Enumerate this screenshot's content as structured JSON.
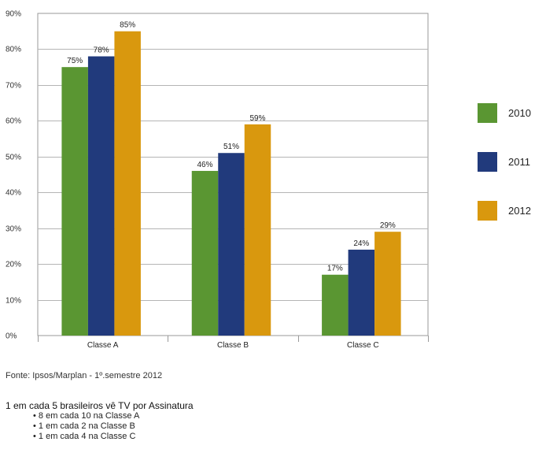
{
  "chart_data": {
    "type": "bar",
    "categories": [
      "Classe A",
      "Classe B",
      "Classe C"
    ],
    "series": [
      {
        "name": "2010",
        "values": [
          75,
          46,
          17
        ],
        "labels": [
          "75%",
          "46%",
          "17%"
        ],
        "color": "#5a9632"
      },
      {
        "name": "2011",
        "values": [
          78,
          51,
          24
        ],
        "labels": [
          "78%",
          "51%",
          "24%"
        ],
        "color": "#213a7c"
      },
      {
        "name": "2012",
        "values": [
          85,
          59,
          29
        ],
        "labels": [
          "85%",
          "59%",
          "29%"
        ],
        "color": "#d9980e"
      }
    ],
    "ylim": [
      0,
      90
    ],
    "yticks": [
      0,
      10,
      20,
      30,
      40,
      50,
      60,
      70,
      80,
      90
    ],
    "ytick_labels": [
      "0%",
      "10%",
      "20%",
      "30%",
      "40%",
      "50%",
      "60%",
      "70%",
      "80%",
      "90%"
    ],
    "grid": true,
    "legend_position": "right"
  },
  "source": "Fonte: Ipsos/Marplan - 1º.semestre 2012",
  "headline": "1 em cada 5 brasileiros vê TV por Assinatura",
  "bullets": [
    "• 8 em cada 10 na Classe A",
    "• 1 em cada 2 na Classe B",
    "• 1 em cada 4 na Classe C"
  ]
}
